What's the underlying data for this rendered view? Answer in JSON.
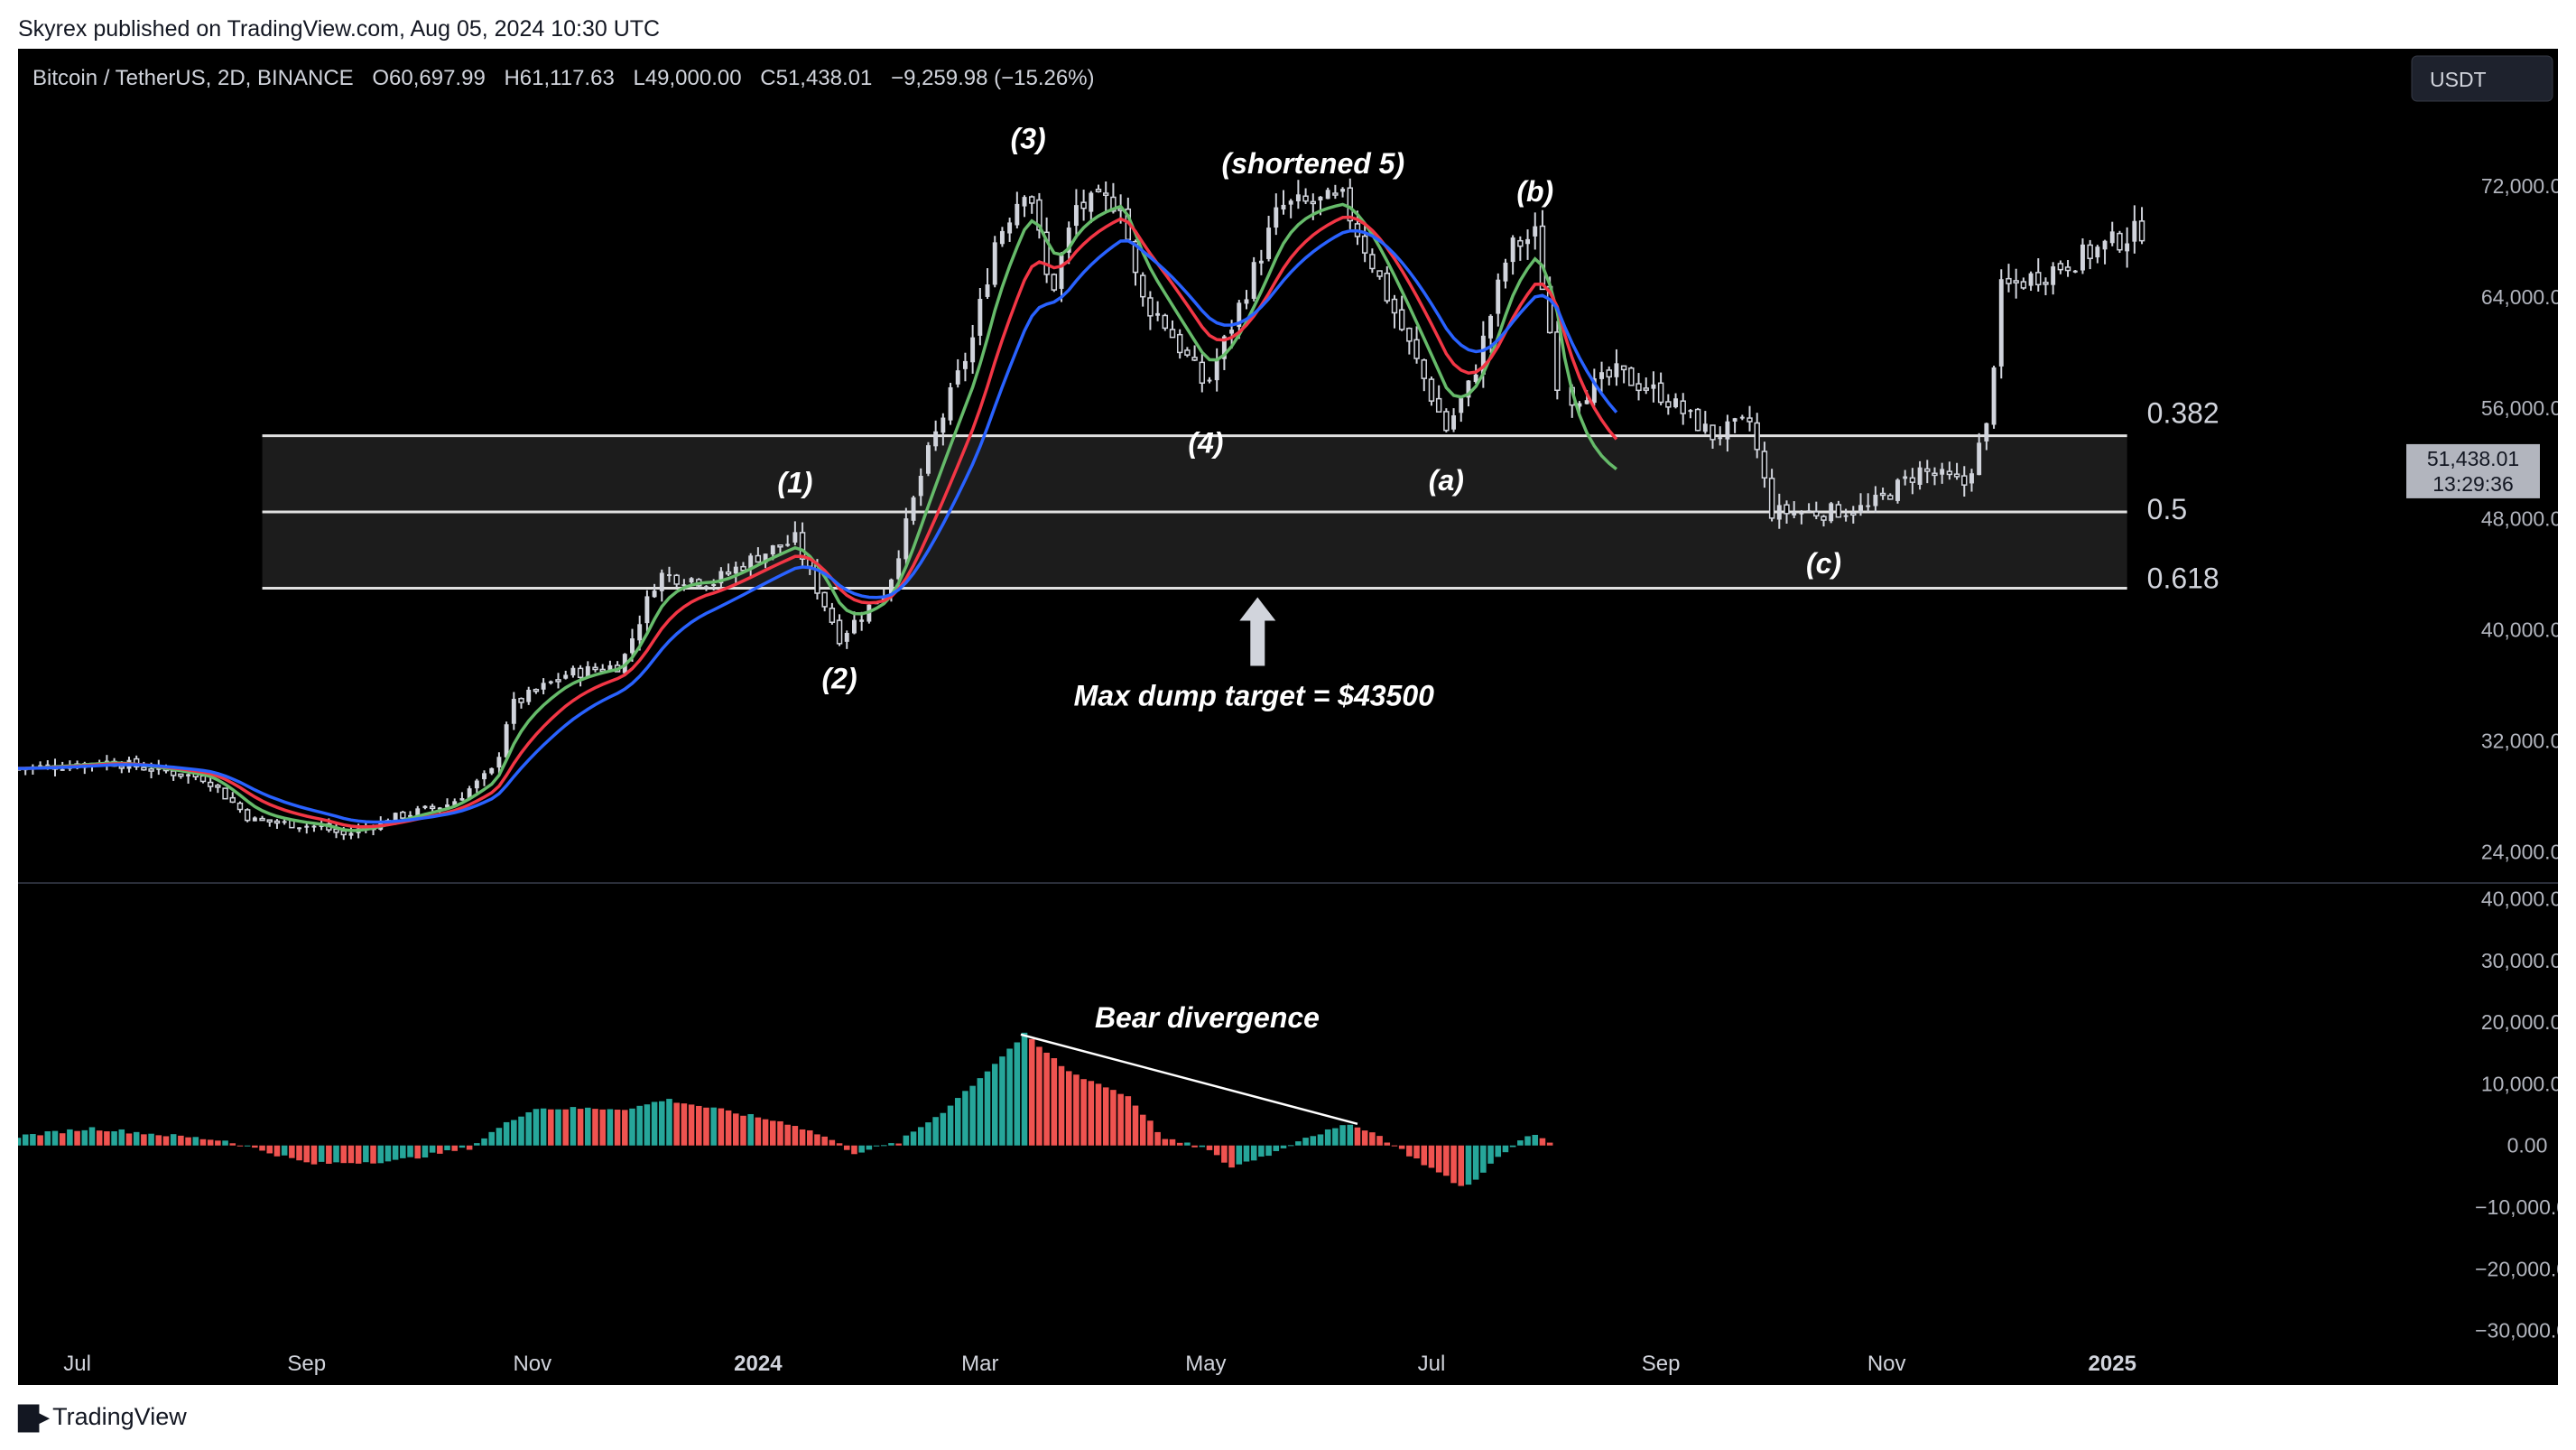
{
  "header": {
    "published_line": "Skyrex published on TradingView.com, Aug 05, 2024 10:30 UTC"
  },
  "legend": {
    "symbol": "Bitcoin / TetherUS, 2D, BINANCE",
    "open": "O60,697.99",
    "high": "H61,117.63",
    "low": "L49,000.00",
    "close": "C51,438.01",
    "change": "−9,259.98 (−15.26%)"
  },
  "currency_button": "USDT",
  "last_price": {
    "value": "51,438.01",
    "countdown": "13:29:36"
  },
  "footer": {
    "brand": "TradingView"
  },
  "colors": {
    "background": "#000000",
    "candle": "#d1d4dc",
    "ema_fast": "#66bb6a",
    "ema_mid": "#f23645",
    "ema_slow": "#2962ff",
    "hist_up": "#26a69a",
    "hist_down": "#ef5350",
    "fib_zone": "#1c1c1c",
    "annotation": "#ffffff"
  },
  "chart_data": [
    {
      "type": "candlestick",
      "title": "Bitcoin / TetherUS, 2D, BINANCE",
      "x_ticks": [
        "Jul",
        "Sep",
        "Nov",
        "2024",
        "Mar",
        "May",
        "Jul",
        "Sep",
        "Nov",
        "2025"
      ],
      "y_ticks": [
        "72,000.00",
        "64,000.00",
        "56,000.00",
        "48,000.00",
        "40,000.00",
        "32,000.00",
        "24,000.00"
      ],
      "ylim": [
        22000,
        78000
      ],
      "x_start": "2023-06-15",
      "x_end": "2025-03-20",
      "price_path": [
        [
          "2023-06-15",
          30000
        ],
        [
          "2023-07-10",
          30500
        ],
        [
          "2023-07-25",
          29800
        ],
        [
          "2023-08-05",
          29300
        ],
        [
          "2023-08-17",
          26300
        ],
        [
          "2023-09-05",
          25800
        ],
        [
          "2023-09-11",
          25200
        ],
        [
          "2023-09-25",
          26500
        ],
        [
          "2023-10-10",
          27500
        ],
        [
          "2023-10-22",
          30000
        ],
        [
          "2023-10-26",
          34500
        ],
        [
          "2023-11-10",
          36800
        ],
        [
          "2023-11-25",
          37500
        ],
        [
          "2023-12-05",
          44000
        ],
        [
          "2023-12-20",
          43500
        ],
        [
          "2024-01-02",
          45500
        ],
        [
          "2024-01-11",
          46500
        ],
        [
          "2024-01-23",
          39500
        ],
        [
          "2024-02-05",
          43000
        ],
        [
          "2024-02-15",
          52000
        ],
        [
          "2024-02-28",
          61000
        ],
        [
          "2024-03-05",
          68000
        ],
        [
          "2024-03-14",
          72500
        ],
        [
          "2024-03-20",
          64000
        ],
        [
          "2024-03-27",
          70500
        ],
        [
          "2024-04-08",
          71000
        ],
        [
          "2024-04-13",
          64000
        ],
        [
          "2024-04-19",
          62500
        ],
        [
          "2024-05-01",
          57500
        ],
        [
          "2024-05-08",
          62000
        ],
        [
          "2024-05-21",
          70500
        ],
        [
          "2024-06-07",
          71000
        ],
        [
          "2024-06-15",
          66500
        ],
        [
          "2024-06-25",
          60500
        ],
        [
          "2024-07-05",
          54500
        ],
        [
          "2024-07-12",
          58000
        ],
        [
          "2024-07-22",
          67500
        ],
        [
          "2024-07-29",
          68500
        ],
        [
          "2024-08-04",
          58000
        ],
        [
          "2024-08-05",
          51438
        ]
      ],
      "projection_path": [
        [
          "2024-08-07",
          56500
        ],
        [
          "2024-08-20",
          58500
        ],
        [
          "2024-09-01",
          57000
        ],
        [
          "2024-09-15",
          54000
        ],
        [
          "2024-09-25",
          55000
        ],
        [
          "2024-10-01",
          48500
        ],
        [
          "2024-10-15",
          48500
        ],
        [
          "2024-10-27",
          48800
        ],
        [
          "2024-11-10",
          51500
        ],
        [
          "2024-11-22",
          50500
        ],
        [
          "2024-11-28",
          54500
        ],
        [
          "2024-12-02",
          64500
        ],
        [
          "2024-12-20",
          66500
        ],
        [
          "2025-01-10",
          69000
        ]
      ],
      "fib_levels": [
        {
          "label": "0.382",
          "value": 54000
        },
        {
          "label": "0.5",
          "value": 48500
        },
        {
          "label": "0.618",
          "value": 43000
        }
      ],
      "fib_range": [
        "2023-08-20",
        "2025-01-05"
      ],
      "wave_labels": [
        {
          "text": "(1)",
          "date": "2024-01-11",
          "price": 49000,
          "pos": "above"
        },
        {
          "text": "(2)",
          "date": "2024-01-23",
          "price": 38500,
          "pos": "below"
        },
        {
          "text": "(3)",
          "date": "2024-03-14",
          "price": 73800,
          "pos": "above"
        },
        {
          "text": "(shortened 5)",
          "date": "2024-05-30",
          "price": 72000,
          "pos": "above"
        },
        {
          "text": "(4)",
          "date": "2024-05-01",
          "price": 55500,
          "pos": "below"
        },
        {
          "text": "(a)",
          "date": "2024-07-05",
          "price": 52800,
          "pos": "below"
        },
        {
          "text": "(b)",
          "date": "2024-07-29",
          "price": 70000,
          "pos": "above"
        },
        {
          "text": "(c)",
          "date": "2024-10-15",
          "price": 46800,
          "pos": "below"
        }
      ],
      "target_arrow": {
        "date": "2024-05-15",
        "price": 43000,
        "label": "Max dump target = $43500"
      },
      "moving_averages": [
        {
          "color": "ema_fast",
          "lag_days": 12
        },
        {
          "color": "ema_mid",
          "lag_days": 22
        },
        {
          "color": "ema_slow",
          "lag_days": 34
        }
      ],
      "ma_end": "2024-08-20"
    },
    {
      "type": "bar",
      "title": "",
      "y_ticks": [
        "40,000.00",
        "30,000.00",
        "20,000.00",
        "10,000.00",
        "0.00",
        "−10,000.00",
        "−20,000.00",
        "−30,000.00"
      ],
      "ylim": [
        -33000,
        42000
      ],
      "histogram_profile": [
        [
          "2023-06-15",
          1500
        ],
        [
          "2023-07-05",
          2800
        ],
        [
          "2023-08-10",
          800
        ],
        [
          "2023-08-20",
          -800
        ],
        [
          "2023-09-02",
          -3000
        ],
        [
          "2023-09-25",
          -2500
        ],
        [
          "2023-10-15",
          -400
        ],
        [
          "2023-10-22",
          2500
        ],
        [
          "2023-11-01",
          6000
        ],
        [
          "2023-11-28",
          6000
        ],
        [
          "2023-12-07",
          7500
        ],
        [
          "2024-01-10",
          3500
        ],
        [
          "2024-01-20",
          1200
        ],
        [
          "2024-01-27",
          -1200
        ],
        [
          "2024-02-08",
          500
        ],
        [
          "2024-02-20",
          5500
        ],
        [
          "2024-03-01",
          11000
        ],
        [
          "2024-03-13",
          18000
        ],
        [
          "2024-03-25",
          12000
        ],
        [
          "2024-04-10",
          8000
        ],
        [
          "2024-04-20",
          1000
        ],
        [
          "2024-05-01",
          -500
        ],
        [
          "2024-05-08",
          -3500
        ],
        [
          "2024-05-20",
          -1000
        ],
        [
          "2024-05-27",
          1200
        ],
        [
          "2024-06-10",
          3500
        ],
        [
          "2024-06-17",
          1500
        ],
        [
          "2024-06-25",
          -1500
        ],
        [
          "2024-07-10",
          -7000
        ],
        [
          "2024-07-18",
          -2500
        ],
        [
          "2024-07-28",
          2000
        ],
        [
          "2024-08-03",
          500
        ]
      ],
      "divergence_line": {
        "from": [
          "2024-03-12",
          18000
        ],
        "to": [
          "2024-06-11",
          3500
        ],
        "label": "Bear divergence"
      }
    }
  ]
}
